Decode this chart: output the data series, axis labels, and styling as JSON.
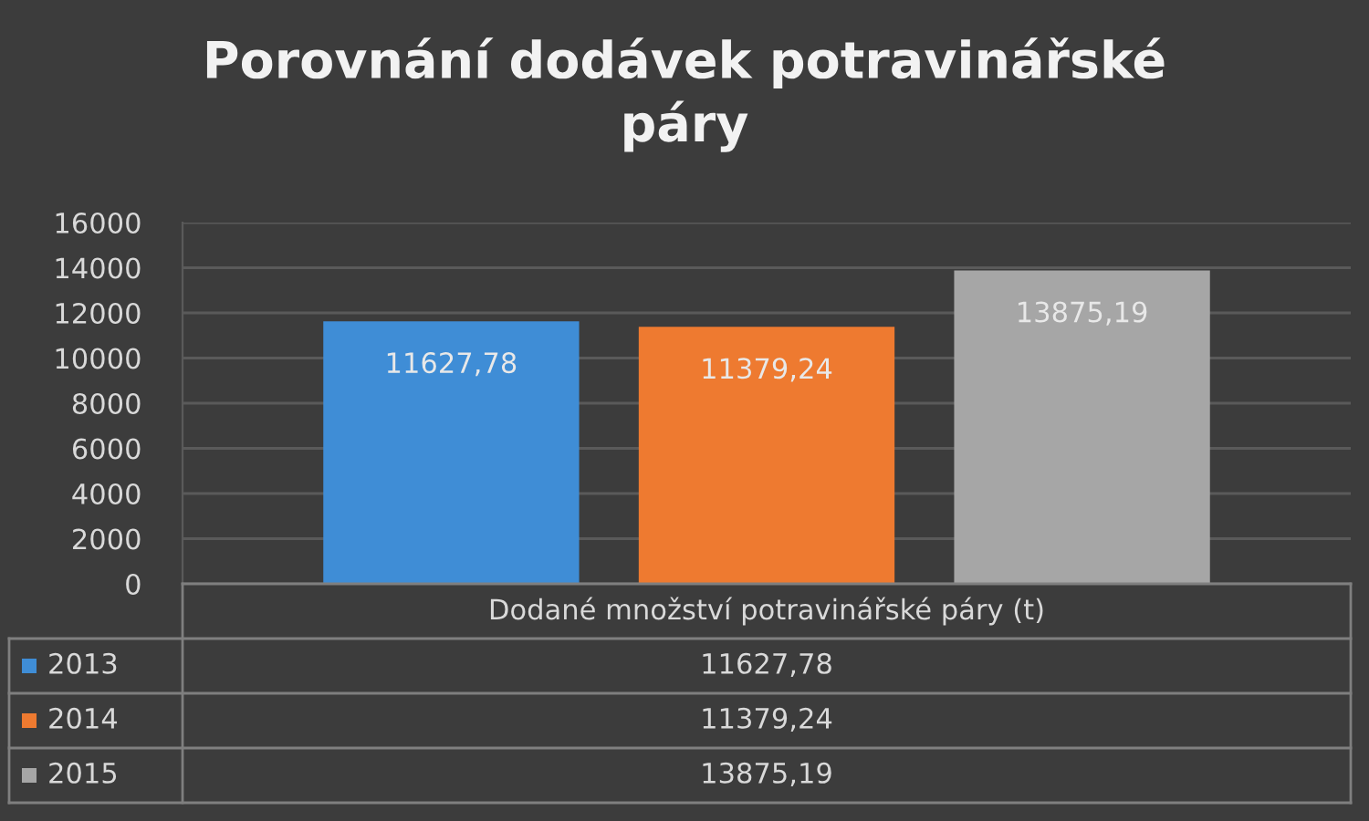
{
  "chart_data": {
    "type": "bar",
    "title": "Porovnání dodávek potravinářské\npáry",
    "categories": [
      "Dodané množství potravinářské páry (t)"
    ],
    "series": [
      {
        "name": "2013",
        "color": "#3f8dd6",
        "values": [
          11627.78
        ],
        "value_labels": [
          "11627,78"
        ]
      },
      {
        "name": "2014",
        "color": "#ee7a30",
        "values": [
          11379.24
        ],
        "value_labels": [
          "11379,24"
        ]
      },
      {
        "name": "2015",
        "color": "#a6a6a6",
        "values": [
          13875.19
        ],
        "value_labels": [
          "13875,19"
        ]
      }
    ],
    "ylim": [
      0,
      16000
    ],
    "yticks": [
      0,
      2000,
      4000,
      6000,
      8000,
      10000,
      12000,
      14000,
      16000
    ],
    "grid": "y",
    "legend": "bottom"
  }
}
